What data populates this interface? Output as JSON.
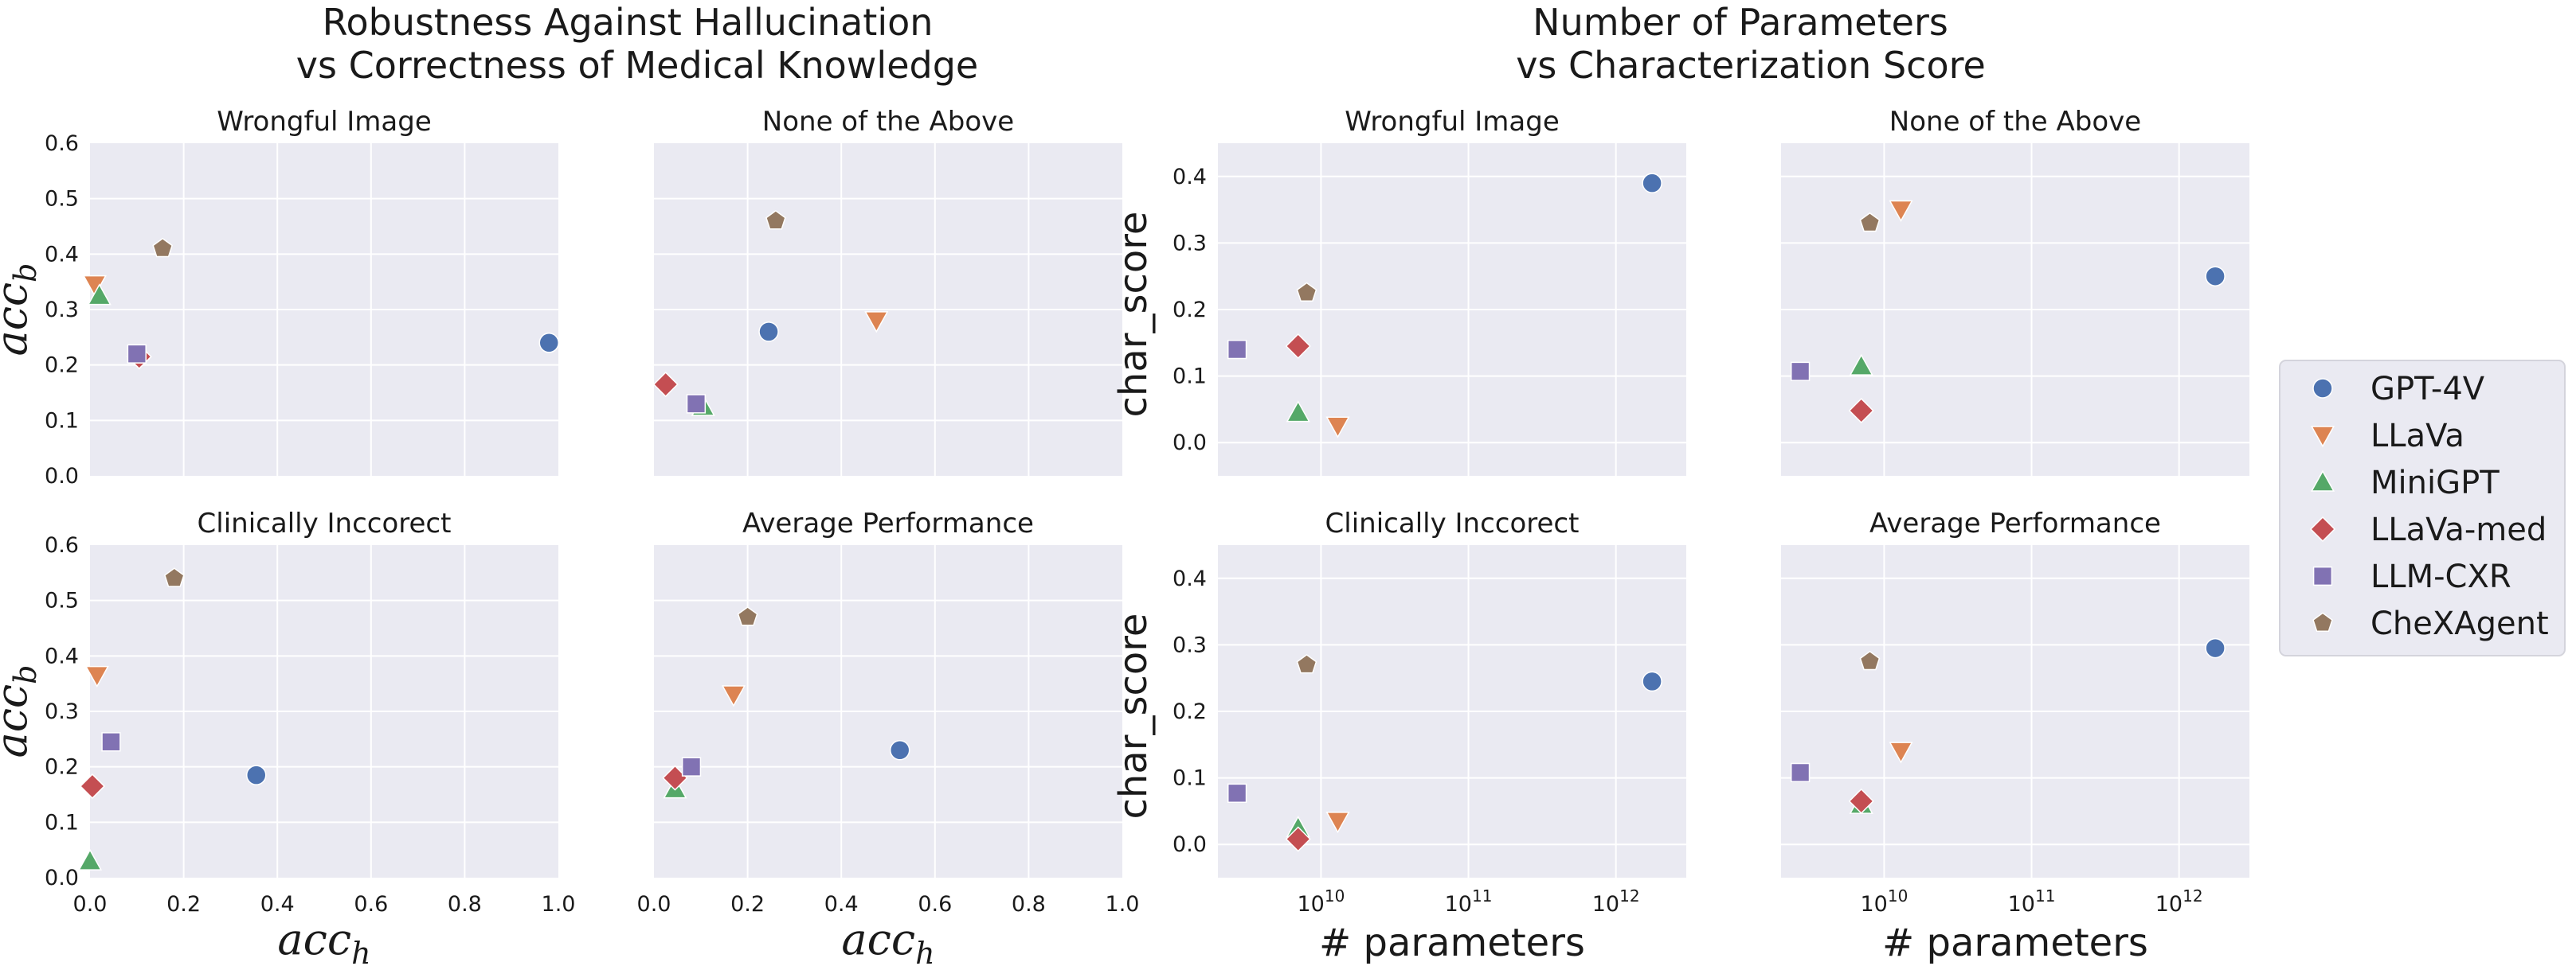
{
  "titles": {
    "left": [
      "Robustness Against Hallucination",
      "vs Correctness of Medical Knowledge"
    ],
    "right": [
      "Number of Parameters",
      "vs Characterization Score"
    ]
  },
  "legend": {
    "entries": [
      {
        "name": "GPT-4V",
        "color": "#4C72B0",
        "marker": "circle"
      },
      {
        "name": "LLaVa",
        "color": "#DD8452",
        "marker": "triangle-down"
      },
      {
        "name": "MiniGPT",
        "color": "#55A868",
        "marker": "triangle-up"
      },
      {
        "name": "LLaVa-med",
        "color": "#C44E52",
        "marker": "diamond"
      },
      {
        "name": "LLM-CXR",
        "color": "#8172B3",
        "marker": "square"
      },
      {
        "name": "CheXAgent",
        "color": "#937860",
        "marker": "pentagon"
      }
    ]
  },
  "chart_data": [
    {
      "type": "scatter",
      "id": "left-wrongful",
      "title": "Wrongful Image",
      "xlabel": "",
      "ylabel": "acc_b",
      "xlim": [
        0,
        1
      ],
      "ylim": [
        0,
        0.6
      ],
      "xticks": [],
      "yticks": [
        "0.0",
        "0.1",
        "0.2",
        "0.3",
        "0.4",
        "0.5",
        "0.6"
      ],
      "points": [
        {
          "series": "GPT-4V",
          "x": 0.98,
          "y": 0.24
        },
        {
          "series": "LLaVa",
          "x": 0.01,
          "y": 0.345
        },
        {
          "series": "MiniGPT",
          "x": 0.02,
          "y": 0.325
        },
        {
          "series": "LLaVa-med",
          "x": 0.105,
          "y": 0.215
        },
        {
          "series": "LLM-CXR",
          "x": 0.1,
          "y": 0.22
        },
        {
          "series": "CheXAgent",
          "x": 0.155,
          "y": 0.41
        }
      ]
    },
    {
      "type": "scatter",
      "id": "left-nota",
      "title": "None of the Above",
      "xlabel": "",
      "ylabel": "",
      "xlim": [
        0,
        1
      ],
      "ylim": [
        0,
        0.6
      ],
      "xticks": [],
      "yticks": [],
      "points": [
        {
          "series": "GPT-4V",
          "x": 0.245,
          "y": 0.26
        },
        {
          "series": "LLaVa",
          "x": 0.475,
          "y": 0.28
        },
        {
          "series": "MiniGPT",
          "x": 0.105,
          "y": 0.125
        },
        {
          "series": "LLaVa-med",
          "x": 0.025,
          "y": 0.165
        },
        {
          "series": "LLM-CXR",
          "x": 0.09,
          "y": 0.13
        },
        {
          "series": "CheXAgent",
          "x": 0.26,
          "y": 0.46
        }
      ]
    },
    {
      "type": "scatter",
      "id": "left-clin",
      "title": "Clinically Inccorect",
      "xlabel": "acc_h",
      "ylabel": "acc_b",
      "xlim": [
        0,
        1
      ],
      "ylim": [
        0,
        0.6
      ],
      "xticks": [
        "0.0",
        "0.2",
        "0.4",
        "0.6",
        "0.8",
        "1.0"
      ],
      "yticks": [
        "0.0",
        "0.1",
        "0.2",
        "0.3",
        "0.4",
        "0.5",
        "0.6"
      ],
      "points": [
        {
          "series": "GPT-4V",
          "x": 0.355,
          "y": 0.185
        },
        {
          "series": "LLaVa",
          "x": 0.015,
          "y": 0.365
        },
        {
          "series": "MiniGPT",
          "x": 0.0,
          "y": 0.03
        },
        {
          "series": "LLaVa-med",
          "x": 0.005,
          "y": 0.165
        },
        {
          "series": "LLM-CXR",
          "x": 0.045,
          "y": 0.245
        },
        {
          "series": "CheXAgent",
          "x": 0.18,
          "y": 0.54
        }
      ]
    },
    {
      "type": "scatter",
      "id": "left-avg",
      "title": "Average Performance",
      "xlabel": "acc_h",
      "ylabel": "",
      "xlim": [
        0,
        1
      ],
      "ylim": [
        0,
        0.6
      ],
      "xticks": [
        "0.0",
        "0.2",
        "0.4",
        "0.6",
        "0.8",
        "1.0"
      ],
      "yticks": [],
      "points": [
        {
          "series": "GPT-4V",
          "x": 0.525,
          "y": 0.23
        },
        {
          "series": "LLaVa",
          "x": 0.17,
          "y": 0.33
        },
        {
          "series": "MiniGPT",
          "x": 0.045,
          "y": 0.16
        },
        {
          "series": "LLaVa-med",
          "x": 0.045,
          "y": 0.18
        },
        {
          "series": "LLM-CXR",
          "x": 0.08,
          "y": 0.2
        },
        {
          "series": "CheXAgent",
          "x": 0.2,
          "y": 0.47
        }
      ]
    },
    {
      "type": "scatter",
      "id": "right-wrongful",
      "title": "Wrongful Image",
      "xlabel": "",
      "ylabel": "char_score",
      "xscale": "log",
      "xlim": [
        2000000000.0,
        3000000000000.0
      ],
      "ylim": [
        -0.05,
        0.45
      ],
      "xticks": [],
      "yticks": [
        "0.0",
        "0.1",
        "0.2",
        "0.3",
        "0.4"
      ],
      "points": [
        {
          "series": "GPT-4V",
          "x": 1760000000000.0,
          "y": 0.39
        },
        {
          "series": "LLaVa",
          "x": 13000000000.0,
          "y": 0.025
        },
        {
          "series": "MiniGPT",
          "x": 7000000000.0,
          "y": 0.045
        },
        {
          "series": "LLaVa-med",
          "x": 7000000000.0,
          "y": 0.145
        },
        {
          "series": "LLM-CXR",
          "x": 2700000000.0,
          "y": 0.14
        },
        {
          "series": "CheXAgent",
          "x": 8000000000.0,
          "y": 0.225
        }
      ]
    },
    {
      "type": "scatter",
      "id": "right-nota",
      "title": "None of the Above",
      "xlabel": "",
      "ylabel": "",
      "xscale": "log",
      "xlim": [
        2000000000.0,
        3000000000000.0
      ],
      "ylim": [
        -0.05,
        0.45
      ],
      "xticks": [],
      "yticks": [],
      "points": [
        {
          "series": "GPT-4V",
          "x": 1760000000000.0,
          "y": 0.25
        },
        {
          "series": "LLaVa",
          "x": 13000000000.0,
          "y": 0.35
        },
        {
          "series": "MiniGPT",
          "x": 7000000000.0,
          "y": 0.115
        },
        {
          "series": "LLaVa-med",
          "x": 7000000000.0,
          "y": 0.048
        },
        {
          "series": "LLM-CXR",
          "x": 2700000000.0,
          "y": 0.107
        },
        {
          "series": "CheXAgent",
          "x": 8000000000.0,
          "y": 0.33
        }
      ]
    },
    {
      "type": "scatter",
      "id": "right-clin",
      "title": "Clinically Inccorect",
      "xlabel": "# parameters",
      "ylabel": "char_score",
      "xscale": "log",
      "xlim": [
        2000000000.0,
        3000000000000.0
      ],
      "ylim": [
        -0.05,
        0.45
      ],
      "xticks": [
        "10^10",
        "10^11",
        "10^12"
      ],
      "yticks": [
        "0.0",
        "0.1",
        "0.2",
        "0.3",
        "0.4"
      ],
      "points": [
        {
          "series": "GPT-4V",
          "x": 1760000000000.0,
          "y": 0.245
        },
        {
          "series": "LLaVa",
          "x": 13000000000.0,
          "y": 0.035
        },
        {
          "series": "MiniGPT",
          "x": 7000000000.0,
          "y": 0.025
        },
        {
          "series": "LLaVa-med",
          "x": 7000000000.0,
          "y": 0.008
        },
        {
          "series": "LLM-CXR",
          "x": 2700000000.0,
          "y": 0.077
        },
        {
          "series": "CheXAgent",
          "x": 8000000000.0,
          "y": 0.27
        }
      ]
    },
    {
      "type": "scatter",
      "id": "right-avg",
      "title": "Average Performance",
      "xlabel": "# parameters",
      "ylabel": "",
      "xscale": "log",
      "xlim": [
        2000000000.0,
        3000000000000.0
      ],
      "ylim": [
        -0.05,
        0.45
      ],
      "xticks": [
        "10^10",
        "10^11",
        "10^12"
      ],
      "yticks": [],
      "points": [
        {
          "series": "GPT-4V",
          "x": 1760000000000.0,
          "y": 0.295
        },
        {
          "series": "LLaVa",
          "x": 13000000000.0,
          "y": 0.14
        },
        {
          "series": "MiniGPT",
          "x": 7000000000.0,
          "y": 0.06
        },
        {
          "series": "LLaVa-med",
          "x": 7000000000.0,
          "y": 0.065
        },
        {
          "series": "LLM-CXR",
          "x": 2700000000.0,
          "y": 0.108
        },
        {
          "series": "CheXAgent",
          "x": 8000000000.0,
          "y": 0.275
        }
      ]
    }
  ]
}
